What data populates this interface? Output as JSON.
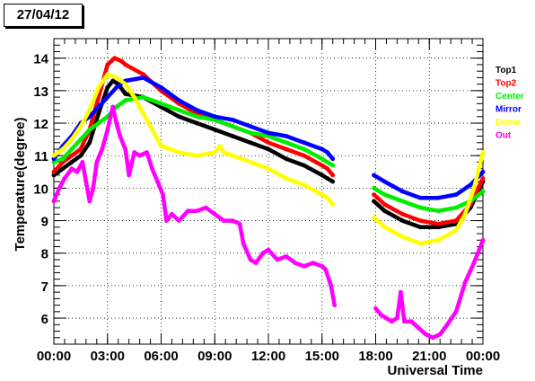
{
  "chart_data": {
    "type": "scatter",
    "title": "27/04/12",
    "xlabel": "Universal Time",
    "ylabel": "Temperature(degree)",
    "xlim": [
      0,
      24
    ],
    "ylim": [
      5.2,
      14.6
    ],
    "x_ticks": [
      {
        "value": 0,
        "label": "00:00"
      },
      {
        "value": 3,
        "label": "03:00"
      },
      {
        "value": 6,
        "label": "06:00"
      },
      {
        "value": 9,
        "label": "09:00"
      },
      {
        "value": 12,
        "label": "12:00"
      },
      {
        "value": 15,
        "label": "15:00"
      },
      {
        "value": 18,
        "label": "18:00"
      },
      {
        "value": 21,
        "label": "21:00"
      },
      {
        "value": 24,
        "label": "00:00"
      }
    ],
    "y_ticks": [
      6,
      7,
      8,
      9,
      10,
      11,
      12,
      13,
      14
    ],
    "grid": true,
    "legend_position": "right",
    "series": [
      {
        "name": "Top1",
        "color": "#000000",
        "points": [
          [
            0,
            10.4
          ],
          [
            0.5,
            10.6
          ],
          [
            1,
            10.8
          ],
          [
            1.5,
            11.0
          ],
          [
            2,
            11.4
          ],
          [
            2.5,
            12.3
          ],
          [
            3,
            13.1
          ],
          [
            3.3,
            13.3
          ],
          [
            3.6,
            13.2
          ],
          [
            4,
            12.9
          ],
          [
            5,
            12.8
          ],
          [
            6,
            12.5
          ],
          [
            7,
            12.2
          ],
          [
            8,
            12.0
          ],
          [
            9,
            11.8
          ],
          [
            10,
            11.6
          ],
          [
            11,
            11.4
          ],
          [
            12,
            11.2
          ],
          [
            13,
            10.9
          ],
          [
            14,
            10.7
          ],
          [
            15,
            10.4
          ],
          [
            15.3,
            10.3
          ],
          [
            15.6,
            10.2
          ],
          [
            17.9,
            9.6
          ],
          [
            18.5,
            9.3
          ],
          [
            19.5,
            9.0
          ],
          [
            20.5,
            8.8
          ],
          [
            21.5,
            8.8
          ],
          [
            22.5,
            8.9
          ],
          [
            23.3,
            9.4
          ],
          [
            24,
            10.2
          ]
        ]
      },
      {
        "name": "Top2",
        "color": "#ff0000",
        "points": [
          [
            0,
            10.5
          ],
          [
            0.5,
            10.8
          ],
          [
            1,
            11.0
          ],
          [
            1.5,
            11.2
          ],
          [
            2,
            11.8
          ],
          [
            2.5,
            12.8
          ],
          [
            3,
            13.8
          ],
          [
            3.4,
            14.0
          ],
          [
            3.8,
            13.9
          ],
          [
            4,
            13.8
          ],
          [
            5,
            13.5
          ],
          [
            6,
            13.0
          ],
          [
            7,
            12.6
          ],
          [
            8,
            12.3
          ],
          [
            9,
            12.1
          ],
          [
            10,
            11.9
          ],
          [
            11,
            11.7
          ],
          [
            12,
            11.4
          ],
          [
            13,
            11.2
          ],
          [
            14,
            11.0
          ],
          [
            15,
            10.7
          ],
          [
            15.3,
            10.6
          ],
          [
            15.6,
            10.4
          ],
          [
            17.9,
            9.8
          ],
          [
            18.5,
            9.5
          ],
          [
            19.5,
            9.2
          ],
          [
            20.5,
            9.0
          ],
          [
            21.5,
            8.9
          ],
          [
            22.5,
            9.0
          ],
          [
            23.3,
            9.5
          ],
          [
            24,
            10.3
          ]
        ]
      },
      {
        "name": "Center",
        "color": "#00ee00",
        "points": [
          [
            0,
            10.8
          ],
          [
            0.5,
            10.9
          ],
          [
            1,
            11.2
          ],
          [
            1.5,
            11.5
          ],
          [
            2,
            11.8
          ],
          [
            2.5,
            12.0
          ],
          [
            3,
            12.2
          ],
          [
            3.5,
            12.5
          ],
          [
            4,
            12.7
          ],
          [
            5,
            12.8
          ],
          [
            6,
            12.6
          ],
          [
            7,
            12.4
          ],
          [
            8,
            12.2
          ],
          [
            9,
            12.1
          ],
          [
            10,
            11.9
          ],
          [
            11,
            11.7
          ],
          [
            12,
            11.6
          ],
          [
            13,
            11.4
          ],
          [
            14,
            11.2
          ],
          [
            15,
            10.9
          ],
          [
            15.3,
            10.8
          ],
          [
            15.6,
            10.7
          ],
          [
            17.9,
            10.0
          ],
          [
            18.5,
            9.8
          ],
          [
            19.5,
            9.6
          ],
          [
            20.5,
            9.4
          ],
          [
            21.5,
            9.3
          ],
          [
            22.5,
            9.4
          ],
          [
            23.3,
            9.6
          ],
          [
            24,
            9.9
          ]
        ]
      },
      {
        "name": "Mirror",
        "color": "#0000ff",
        "points": [
          [
            0,
            10.9
          ],
          [
            0.5,
            11.3
          ],
          [
            1,
            11.6
          ],
          [
            1.5,
            12.0
          ],
          [
            2,
            12.2
          ],
          [
            2.5,
            12.5
          ],
          [
            3,
            12.8
          ],
          [
            3.5,
            13.1
          ],
          [
            4,
            13.3
          ],
          [
            5,
            13.4
          ],
          [
            6,
            13.1
          ],
          [
            7,
            12.7
          ],
          [
            8,
            12.4
          ],
          [
            9,
            12.2
          ],
          [
            10,
            12.1
          ],
          [
            11,
            11.9
          ],
          [
            12,
            11.7
          ],
          [
            13,
            11.6
          ],
          [
            14,
            11.4
          ],
          [
            15,
            11.2
          ],
          [
            15.3,
            11.1
          ],
          [
            15.6,
            10.9
          ],
          [
            17.9,
            10.4
          ],
          [
            18.5,
            10.2
          ],
          [
            19.5,
            9.9
          ],
          [
            20.5,
            9.7
          ],
          [
            21.5,
            9.7
          ],
          [
            22.5,
            9.8
          ],
          [
            23.3,
            10.1
          ],
          [
            24,
            10.5
          ]
        ]
      },
      {
        "name": "Dome",
        "color": "#ffff00",
        "points": [
          [
            0,
            11.0
          ],
          [
            0.5,
            11.2
          ],
          [
            1,
            11.5
          ],
          [
            1.5,
            11.9
          ],
          [
            2,
            12.4
          ],
          [
            2.5,
            13.1
          ],
          [
            3,
            13.5
          ],
          [
            3.5,
            13.4
          ],
          [
            4,
            13.2
          ],
          [
            4.5,
            12.8
          ],
          [
            5,
            12.3
          ],
          [
            5.5,
            11.8
          ],
          [
            6,
            11.3
          ],
          [
            6.5,
            11.2
          ],
          [
            7,
            11.1
          ],
          [
            8,
            11.0
          ],
          [
            9,
            11.1
          ],
          [
            9.3,
            11.3
          ],
          [
            9.5,
            11.1
          ],
          [
            10,
            11.0
          ],
          [
            11,
            10.8
          ],
          [
            12,
            10.6
          ],
          [
            13,
            10.3
          ],
          [
            14,
            10.1
          ],
          [
            15,
            9.8
          ],
          [
            15.3,
            9.7
          ],
          [
            15.6,
            9.5
          ],
          [
            17.9,
            9.1
          ],
          [
            18.5,
            8.8
          ],
          [
            19.5,
            8.5
          ],
          [
            20.5,
            8.3
          ],
          [
            21.5,
            8.4
          ],
          [
            22.5,
            8.7
          ],
          [
            23,
            9.2
          ],
          [
            23.5,
            10.0
          ],
          [
            24,
            11.1
          ]
        ]
      },
      {
        "name": "Out",
        "color": "#ff00ff",
        "points": [
          [
            0,
            9.6
          ],
          [
            0.3,
            10.0
          ],
          [
            0.6,
            10.3
          ],
          [
            1,
            10.6
          ],
          [
            1.3,
            10.5
          ],
          [
            1.6,
            10.8
          ],
          [
            1.8,
            10.2
          ],
          [
            2,
            9.6
          ],
          [
            2.2,
            10.0
          ],
          [
            2.4,
            10.8
          ],
          [
            2.7,
            11.2
          ],
          [
            3,
            11.8
          ],
          [
            3.3,
            12.5
          ],
          [
            3.5,
            12.0
          ],
          [
            3.7,
            11.6
          ],
          [
            4,
            11.2
          ],
          [
            4.2,
            10.4
          ],
          [
            4.5,
            11.1
          ],
          [
            4.8,
            11.0
          ],
          [
            5.2,
            11.1
          ],
          [
            5.5,
            10.6
          ],
          [
            5.8,
            10.2
          ],
          [
            6.1,
            9.8
          ],
          [
            6.3,
            9.0
          ],
          [
            6.6,
            9.2
          ],
          [
            7,
            9.0
          ],
          [
            7.5,
            9.3
          ],
          [
            8,
            9.3
          ],
          [
            8.5,
            9.4
          ],
          [
            9,
            9.2
          ],
          [
            9.5,
            9.0
          ],
          [
            10,
            9.0
          ],
          [
            10.4,
            8.9
          ],
          [
            10.6,
            8.3
          ],
          [
            11,
            7.8
          ],
          [
            11.3,
            7.7
          ],
          [
            11.7,
            8.0
          ],
          [
            12,
            8.1
          ],
          [
            12.5,
            7.8
          ],
          [
            13,
            7.9
          ],
          [
            13.5,
            7.7
          ],
          [
            14,
            7.6
          ],
          [
            14.5,
            7.7
          ],
          [
            15,
            7.6
          ],
          [
            15.2,
            7.5
          ],
          [
            15.5,
            7.0
          ],
          [
            15.7,
            6.4
          ],
          [
            18,
            6.3
          ],
          [
            18.3,
            6.1
          ],
          [
            18.6,
            6.0
          ],
          [
            18.9,
            5.9
          ],
          [
            19.2,
            6.0
          ],
          [
            19.4,
            6.8
          ],
          [
            19.6,
            5.9
          ],
          [
            20,
            5.9
          ],
          [
            20.4,
            5.7
          ],
          [
            20.8,
            5.5
          ],
          [
            21.2,
            5.4
          ],
          [
            21.6,
            5.5
          ],
          [
            22,
            5.8
          ],
          [
            22.5,
            6.2
          ],
          [
            23,
            7.1
          ],
          [
            23.5,
            7.7
          ],
          [
            24,
            8.4
          ]
        ]
      }
    ]
  }
}
